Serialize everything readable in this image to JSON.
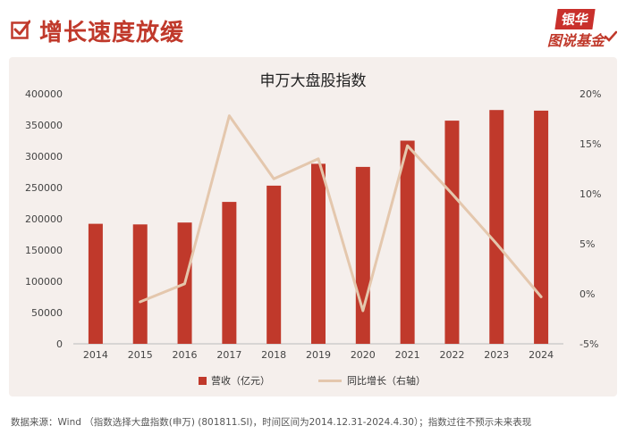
{
  "header": {
    "title": "增长速度放缓",
    "brand_top": "银华",
    "brand_bottom": "图说基金"
  },
  "chart_data": {
    "type": "bar",
    "title": "申万大盘股指数",
    "categories": [
      "2014",
      "2015",
      "2016",
      "2017",
      "2018",
      "2019",
      "2020",
      "2021",
      "2022",
      "2023",
      "2024"
    ],
    "series": [
      {
        "name": "营收（亿元）",
        "type": "bar",
        "axis": "left",
        "color": "#c0392b",
        "values": [
          192000,
          191000,
          194000,
          227000,
          253000,
          288000,
          283000,
          325000,
          357000,
          374000,
          373000
        ]
      },
      {
        "name": "同比增长（右轴）",
        "type": "line",
        "axis": "right",
        "color": "#e4c7ad",
        "values": [
          null,
          -0.8,
          1.0,
          17.8,
          11.5,
          13.5,
          -1.7,
          14.8,
          10.0,
          5.0,
          -0.3
        ]
      }
    ],
    "ylim": [
      0,
      400000
    ],
    "yticks": [
      "0",
      "50000",
      "100000",
      "150000",
      "200000",
      "250000",
      "300000",
      "350000",
      "400000"
    ],
    "y2lim": [
      -5,
      20
    ],
    "y2ticks": [
      "-5%",
      "0%",
      "5%",
      "10%",
      "15%",
      "20%"
    ],
    "legend_position": "bottom",
    "grid": false
  },
  "footnote": "数据来源：Wind （指数选择大盘指数(申万) (801811.SI)，时间区间为2014.12.31-2024.4.30）；指数过往不预示未来表现"
}
